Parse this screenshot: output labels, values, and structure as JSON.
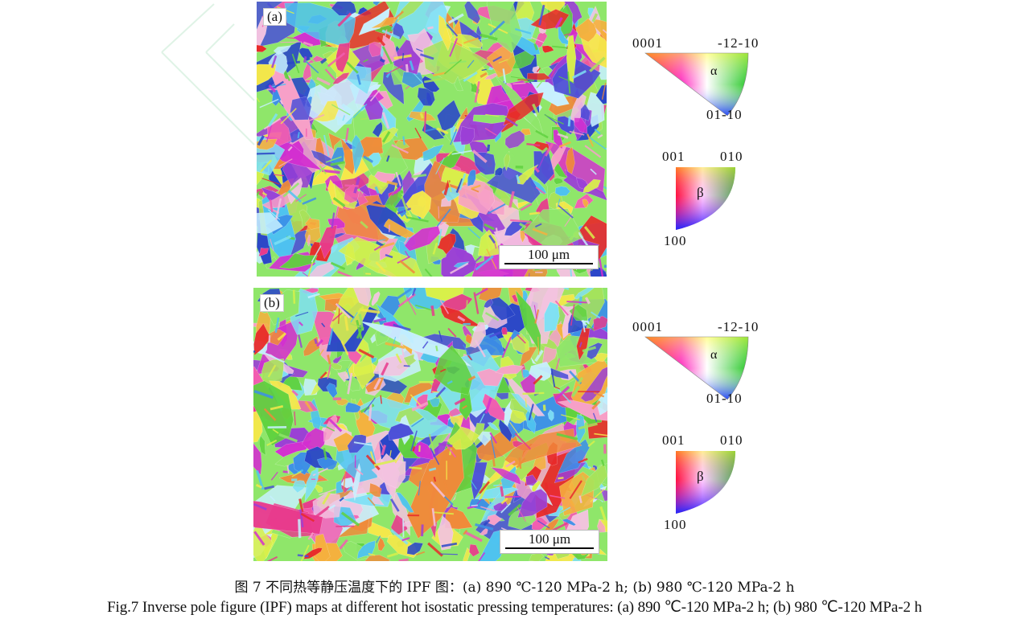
{
  "panels": [
    {
      "label": "(a)",
      "scalebar": "100 μm"
    },
    {
      "label": "(b)",
      "scalebar": "100 μm"
    }
  ],
  "keys": [
    {
      "alpha": {
        "corner_left": "0001",
        "corner_right": "-12-10",
        "corner_bottom": "01-10",
        "symbol": "α"
      },
      "beta": {
        "corner_left": "001",
        "corner_right": "010",
        "corner_bottom": "100",
        "symbol": "β"
      }
    },
    {
      "alpha": {
        "corner_left": "0001",
        "corner_right": "-12-10",
        "corner_bottom": "01-10",
        "symbol": "α"
      },
      "beta": {
        "corner_left": "001",
        "corner_right": "010",
        "corner_bottom": "100",
        "symbol": "β"
      }
    }
  ],
  "caption": {
    "chinese": "图 7  不同热等静压温度下的 IPF 图：(a) 890 ℃-120 MPa-2 h; (b) 980 ℃-120 MPa-2 h",
    "english": "Fig.7  Inverse pole figure (IPF) maps at different hot isostatic pressing temperatures: (a) 890 ℃-120 MPa-2 h; (b) 980 ℃-120 MPa-2 h"
  },
  "colors": {
    "ipf_palette": [
      "#e83a8c",
      "#f25db0",
      "#d32fd0",
      "#9b3fd6",
      "#4b4fd8",
      "#2a46c8",
      "#3c8fe8",
      "#4ec2f0",
      "#7ee0f5",
      "#8fe66a",
      "#5fd13e",
      "#a8e25a",
      "#d8f04a",
      "#f5e84a",
      "#f5b03e",
      "#f08a3a",
      "#e82a2a",
      "#f7a0c8",
      "#f3c2e0",
      "#c7f0ff"
    ]
  }
}
